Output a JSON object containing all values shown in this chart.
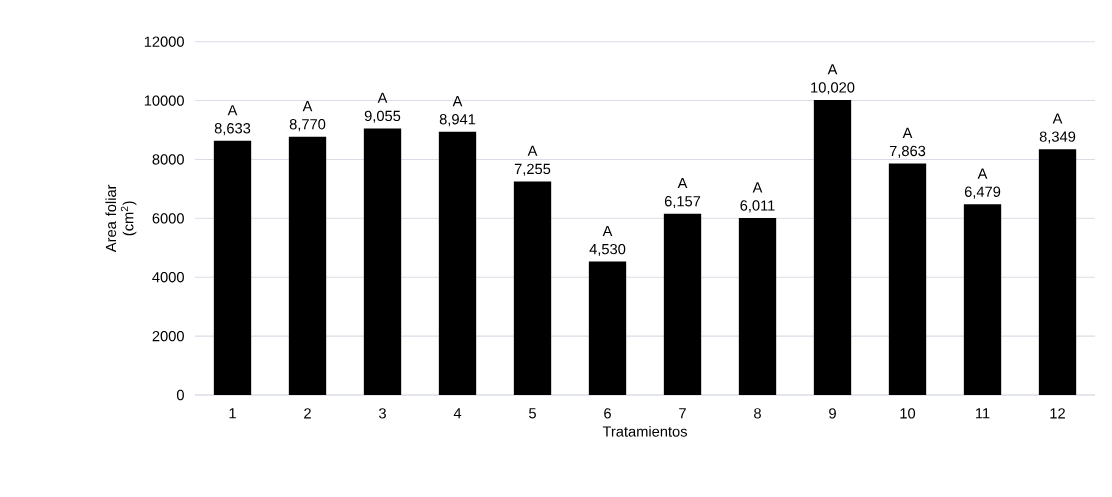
{
  "chart_data": {
    "type": "bar",
    "xlabel": "Tratamientos",
    "ylabel": "Area foliar (cm$^{2}$)",
    "categories": [
      "1",
      "2",
      "3",
      "4",
      "5",
      "6",
      "7",
      "8",
      "9",
      "10",
      "11",
      "12"
    ],
    "values": [
      8633,
      8770,
      9055,
      8941,
      7255,
      4530,
      6157,
      6011,
      10020,
      7863,
      6479,
      8349
    ],
    "value_labels": [
      "8,633",
      "8,770",
      "9,055",
      "8,941",
      "7,255",
      "4,530",
      "6,157",
      "6,011",
      "10,020",
      "7,863",
      "6,479",
      "8,349"
    ],
    "color": "#000000",
    "ylim": [
      0,
      12000
    ],
    "yticks": [
      0,
      2000,
      4000,
      6000,
      8000,
      10000,
      12000
    ],
    "grid": "y",
    "annotations": [
      {
        "text": "A",
        "x": "1",
        "y": 8633
      },
      {
        "text": "A",
        "x": "2",
        "y": 8770
      },
      {
        "text": "A",
        "x": "3",
        "y": 9055
      },
      {
        "text": "A",
        "x": "4",
        "y": 8941
      },
      {
        "text": "A",
        "x": "5",
        "y": 7255
      },
      {
        "text": "A",
        "x": "6",
        "y": 4530
      },
      {
        "text": "A",
        "x": "7",
        "y": 6157
      },
      {
        "text": "A",
        "x": "8",
        "y": 6011
      },
      {
        "text": "A",
        "x": "9",
        "y": 10020
      },
      {
        "text": "A",
        "x": "10",
        "y": 7863
      },
      {
        "text": "A",
        "x": "11",
        "y": 6479
      },
      {
        "text": "A",
        "x": "12",
        "y": 8349
      }
    ]
  }
}
